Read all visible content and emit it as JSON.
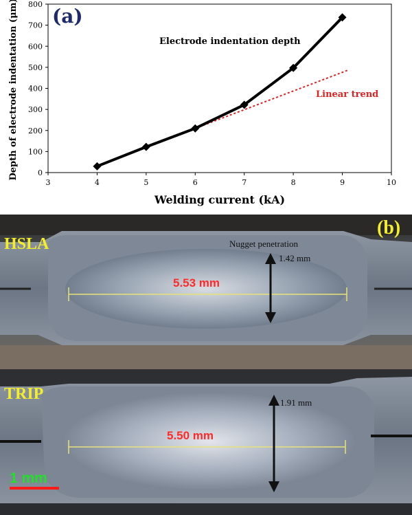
{
  "chart_data": {
    "type": "line",
    "panel_label": "(a)",
    "xlabel": "Welding current (kA)",
    "ylabel": "Depth of electrode indentation (μm)",
    "xlim": [
      3,
      10
    ],
    "ylim": [
      0,
      800
    ],
    "xticks": [
      3,
      4,
      5,
      6,
      7,
      8,
      9,
      10
    ],
    "yticks": [
      0,
      100,
      200,
      300,
      400,
      500,
      600,
      700,
      800
    ],
    "grid": false,
    "series": [
      {
        "name": "Electrode indentation depth",
        "color": "#000000",
        "marker": "diamond",
        "x": [
          4,
          5,
          6,
          7,
          8,
          9
        ],
        "y": [
          30,
          122,
          210,
          322,
          497,
          737
        ]
      },
      {
        "name": "Linear trend",
        "color": "#e02020",
        "style": "dotted",
        "x": [
          6,
          9.1
        ],
        "y": [
          210,
          485
        ]
      }
    ]
  },
  "micrograph": {
    "panel_label": "(b)",
    "top_sample": {
      "label": "HSLA",
      "width_label": "5.53 mm",
      "penetration_caption": "Nugget penetration",
      "penetration_value": "1.42 mm"
    },
    "bottom_sample": {
      "label": "TRIP",
      "width_label": "5.50 mm",
      "penetration_value": "1.91 mm"
    },
    "scale_bar": "1 mm"
  }
}
